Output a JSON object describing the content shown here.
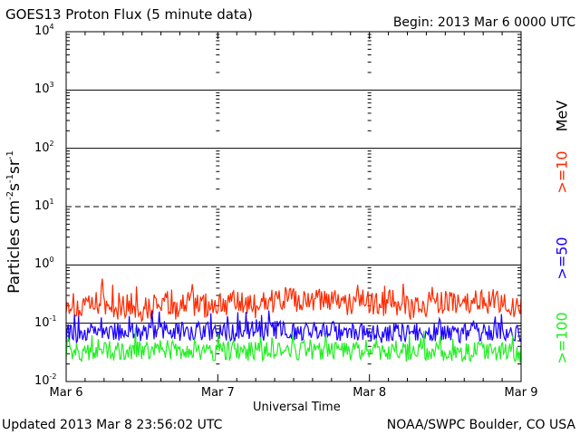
{
  "header": {
    "title": "GOES13 Proton Flux (5 minute data)",
    "begin": "Begin: 2013 Mar 6 0000 UTC"
  },
  "footer": {
    "updated": "Updated 2013 Mar  8 23:56:02 UTC",
    "credit": "NOAA/SWPC Boulder, CO USA"
  },
  "legend": {
    "unit": "MeV",
    "items": [
      {
        "label": ">=10",
        "color": "#ff2a00"
      },
      {
        "label": ">=50",
        "color": "#1a00ff"
      },
      {
        "label": ">=100",
        "color": "#22ee22"
      }
    ]
  },
  "chart_data": {
    "type": "line",
    "title": "GOES13 Proton Flux (5 minute data)",
    "xlabel": "Universal Time",
    "ylabel": "Particles cm-2s-1sr-1",
    "y_scale": "log",
    "ylim": [
      0.01,
      10000
    ],
    "y_ticks": [
      {
        "value": 0.01,
        "base": "10",
        "exp": "-2"
      },
      {
        "value": 0.1,
        "base": "10",
        "exp": "-1"
      },
      {
        "value": 1,
        "base": "10",
        "exp": "0"
      },
      {
        "value": 10,
        "base": "10",
        "exp": "1"
      },
      {
        "value": 100,
        "base": "10",
        "exp": "2"
      },
      {
        "value": 1000,
        "base": "10",
        "exp": "3"
      },
      {
        "value": 10000,
        "base": "10",
        "exp": "4"
      }
    ],
    "xlim": [
      "2013-03-06 00:00",
      "2013-03-09 00:00"
    ],
    "x_ticks": [
      "Mar 6",
      "Mar 7",
      "Mar 8",
      "Mar 9"
    ],
    "threshold_line": 10,
    "grid": "horizontal lines at decades, dashed at 10",
    "series": [
      {
        "name": ">=10 MeV",
        "color": "#ff2a00",
        "values": [
          0.25,
          0.16,
          0.22,
          0.18,
          0.2,
          0.17,
          0.24,
          0.19,
          0.22,
          0.2,
          0.23,
          0.21,
          0.2,
          0.24,
          0.26,
          0.22,
          0.25,
          0.23,
          0.21,
          0.24,
          0.2,
          0.22,
          0.19,
          0.21,
          0.23,
          0.2,
          0.22,
          0.24,
          0.21,
          0.2
        ]
      },
      {
        "name": ">=50 MeV",
        "color": "#1a00ff",
        "values": [
          0.07,
          0.06,
          0.08,
          0.07,
          0.075,
          0.065,
          0.08,
          0.07,
          0.075,
          0.07,
          0.072,
          0.068,
          0.07,
          0.075,
          0.08,
          0.07,
          0.072,
          0.075,
          0.068,
          0.07,
          0.065,
          0.07,
          0.068,
          0.072,
          0.07,
          0.066,
          0.07,
          0.072,
          0.068,
          0.065
        ]
      },
      {
        "name": ">=100 MeV",
        "color": "#22ee22",
        "values": [
          0.035,
          0.03,
          0.038,
          0.033,
          0.036,
          0.032,
          0.037,
          0.034,
          0.035,
          0.033,
          0.034,
          0.032,
          0.033,
          0.035,
          0.036,
          0.034,
          0.035,
          0.033,
          0.032,
          0.034,
          0.031,
          0.033,
          0.032,
          0.034,
          0.033,
          0.031,
          0.033,
          0.034,
          0.032,
          0.031
        ]
      }
    ]
  }
}
